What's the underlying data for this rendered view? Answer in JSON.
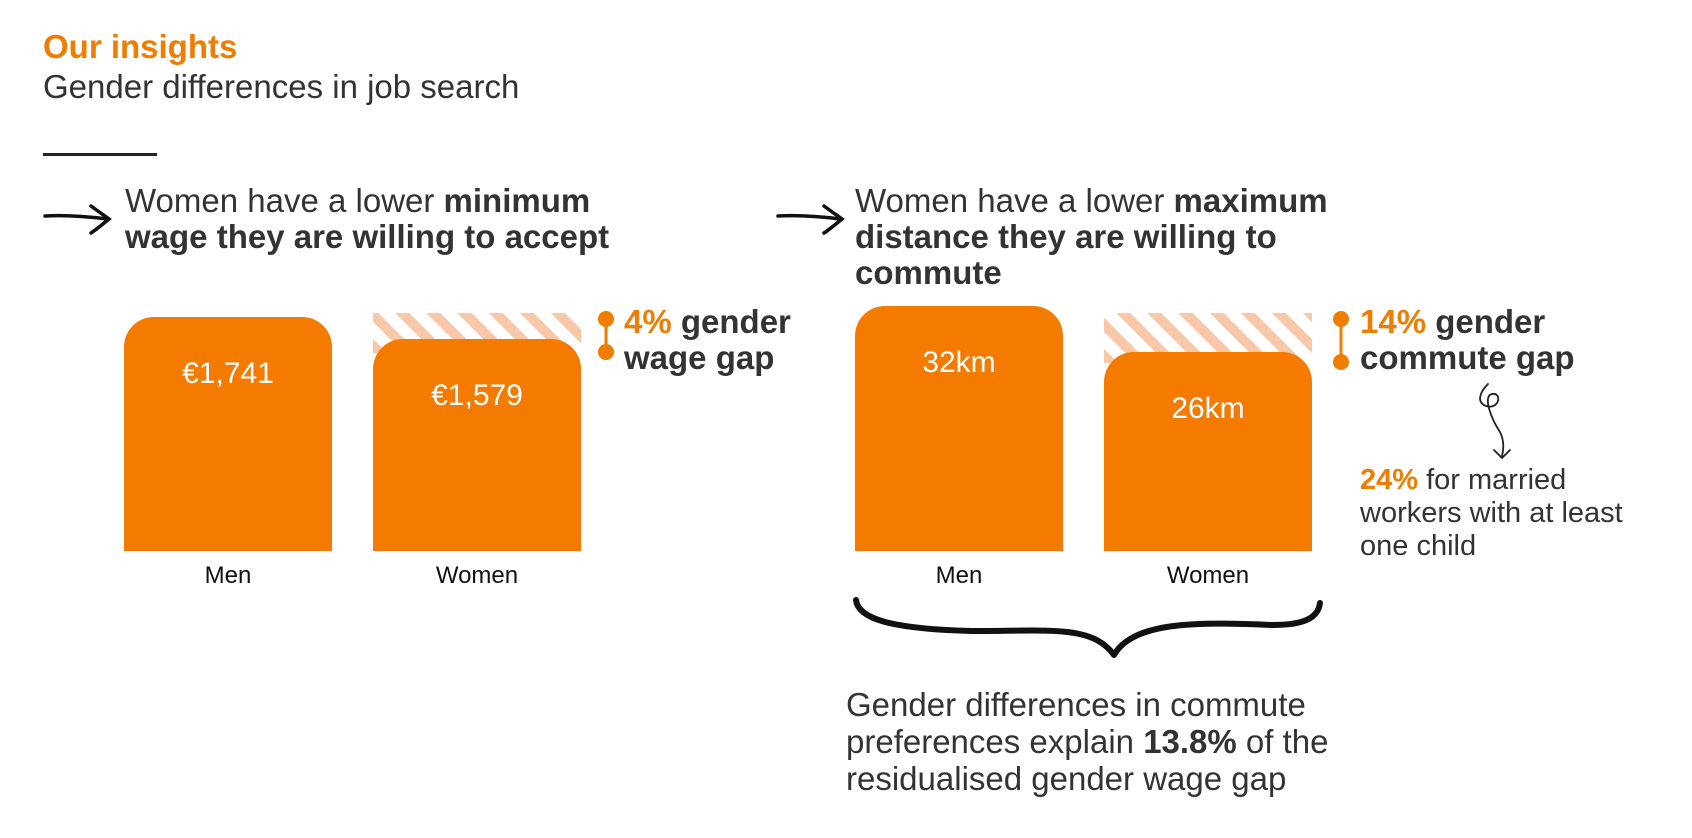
{
  "header": {
    "kicker": "Our insights",
    "subtitle": "Gender differences in job search"
  },
  "colors": {
    "accent": "#f07c00",
    "bar": "#f47b00",
    "hatch": "#f8c8a8",
    "text": "#333333"
  },
  "panel1": {
    "heading_pre": "Women have a lower ",
    "heading_bold": "minimum wage they are willing to accept",
    "gap_pct": "4%",
    "gap_text_1": " gender",
    "gap_text_2": "wage gap"
  },
  "panel2": {
    "heading_pre": "Women have a lower ",
    "heading_bold": "maximum distance they are willing to commute",
    "gap_pct": "14%",
    "gap_text_1": " gender",
    "gap_text_2": "commute gap",
    "note_pct": "24%",
    "note_text_1": " for married",
    "note_text_2": "workers with at least",
    "note_text_3": "one child"
  },
  "conclusion": {
    "line1": "Gender differences in commute",
    "line2_pre": "preferences explain ",
    "line2_bold": "13.8%",
    "line2_post": " of the",
    "line3": "residualised gender wage gap"
  },
  "chart_data": [
    {
      "type": "bar",
      "categories": [
        "Men",
        "Women"
      ],
      "values": [
        1741,
        1579
      ],
      "value_labels": [
        "€1,741",
        "€1,579"
      ],
      "title": "Women have a lower minimum wage they are willing to accept",
      "annotation": "4% gender wage gap"
    },
    {
      "type": "bar",
      "categories": [
        "Men",
        "Women"
      ],
      "values": [
        32,
        26
      ],
      "value_labels": [
        "32km",
        "26km"
      ],
      "title": "Women have a lower maximum distance they are willing to commute",
      "annotation": "14% gender commute gap"
    }
  ]
}
